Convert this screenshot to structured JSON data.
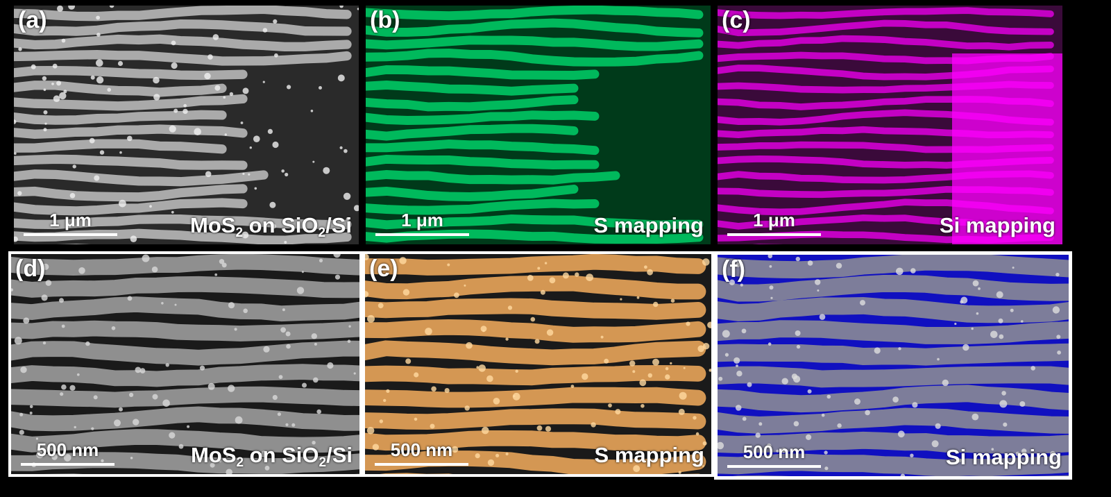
{
  "panels": [
    {
      "letter": "(a)",
      "scale": "1 μm",
      "caption": {
        "pre": "MoS",
        "sub1": "2",
        "mid": " on SiO",
        "sub2": "2",
        "post": "/Si"
      },
      "color": "#b8b8b8"
    },
    {
      "letter": "(b)",
      "scale": "1 μm",
      "caption": {
        "pre": "S mapping",
        "sub1": "",
        "mid": "",
        "sub2": "",
        "post": ""
      },
      "color": "#00c864"
    },
    {
      "letter": "(c)",
      "scale": "1 μm",
      "caption": {
        "pre": "Si mapping",
        "sub1": "",
        "mid": "",
        "sub2": "",
        "post": ""
      },
      "color": "#d400d4"
    },
    {
      "letter": "(d)",
      "scale": "500 nm",
      "caption": {
        "pre": "MoS",
        "sub1": "2",
        "mid": " on SiO",
        "sub2": "2",
        "post": "/Si"
      },
      "color": "#9c9c9c"
    },
    {
      "letter": "(e)",
      "scale": "500 nm",
      "caption": {
        "pre": "S mapping",
        "sub1": "",
        "mid": "",
        "sub2": "",
        "post": ""
      },
      "color": "#e9a55a"
    },
    {
      "letter": "(f)",
      "scale": "500 nm",
      "caption": {
        "pre": "Si mapping",
        "sub1": "",
        "mid": "",
        "sub2": "",
        "post": ""
      },
      "color": "#1e1ee6"
    }
  ]
}
